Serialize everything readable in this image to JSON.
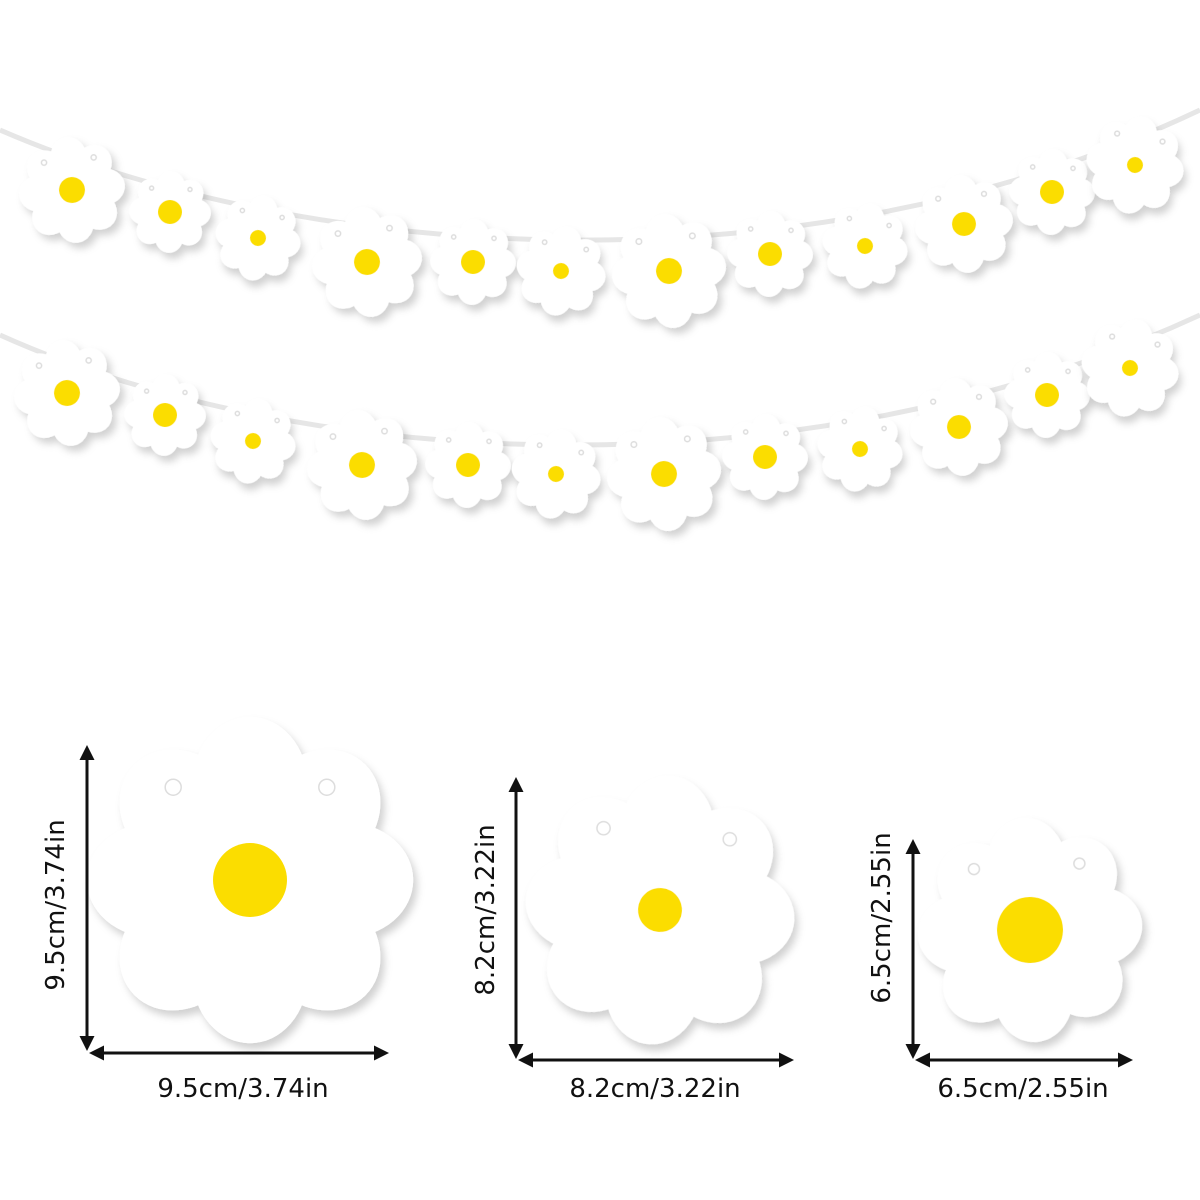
{
  "dimensions": [
    {
      "height": "9.5cm/3.74in",
      "width": "9.5cm/3.74in"
    },
    {
      "height": "8.2cm/3.22in",
      "width": "8.2cm/3.22in"
    },
    {
      "height": "6.5cm/2.55in",
      "width": "6.5cm/2.55in"
    }
  ]
}
